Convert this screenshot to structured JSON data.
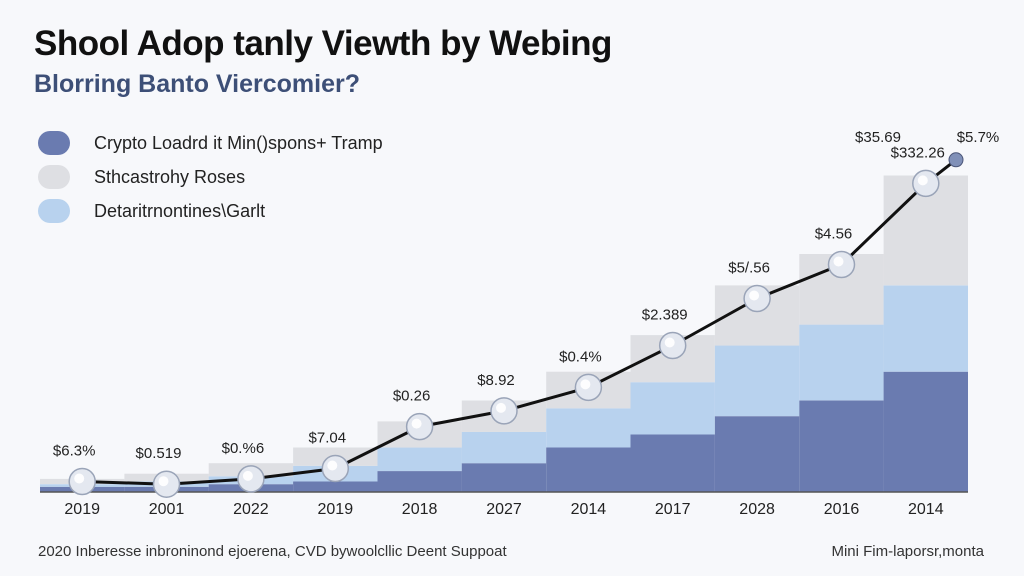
{
  "title": "Shool Adop tanly Viewth by Webing",
  "subtitle": "Blorring Banto Viercomier?",
  "legend": [
    {
      "label": "Crypto Loadrd it Min()spons+ Tramp",
      "color": "#6a7bb0"
    },
    {
      "label": "Sthcastrohy Roses",
      "color": "#dedfe3"
    },
    {
      "label": "Detaritrnontines\\Garlt",
      "color": "#b8d2ee"
    }
  ],
  "footer": {
    "left": "2020 Inberesse inbroninond ejoerena, CVD bywoolcllic Deent Suppoat",
    "right": "Mini Fim-laporsr,monta"
  },
  "chart_data": {
    "type": "bar",
    "stacked": true,
    "categories": [
      "2019",
      "2001",
      "2022",
      "2019",
      "2018",
      "2027",
      "2014",
      "2017",
      "2028",
      "2016",
      "2014"
    ],
    "series": [
      {
        "name": "Crypto Loadrd it Min()spons+ Tramp",
        "color": "#6a7bb0",
        "values": [
          2,
          2,
          3,
          4,
          8,
          11,
          17,
          22,
          29,
          35,
          46
        ]
      },
      {
        "name": "Detaritrnontines\\Garlt",
        "color": "#b8d2ee",
        "values": [
          1,
          2,
          3,
          6,
          9,
          12,
          15,
          20,
          27,
          29,
          33
        ]
      },
      {
        "name": "Sthcastrohy Roses",
        "color": "#dedfe3",
        "values": [
          2,
          3,
          5,
          7,
          10,
          12,
          14,
          18,
          23,
          27,
          42
        ]
      }
    ],
    "line": {
      "values": [
        4,
        3,
        5,
        9,
        25,
        31,
        40,
        56,
        74,
        87,
        118
      ],
      "end_value": 127,
      "labels": [
        "$6.3%",
        "$0.519",
        "$0.%6",
        "$7.04",
        "$0.26",
        "$8.92",
        "$0.4%",
        "$2.389",
        "$5/.56",
        "$4.56",
        "$332.26"
      ],
      "end_labels": [
        "$35.69",
        "$5.7%"
      ]
    },
    "ylim": [
      0,
      130
    ],
    "xlabel": "",
    "ylabel": "",
    "grid": false,
    "legend_position": "top-left"
  }
}
